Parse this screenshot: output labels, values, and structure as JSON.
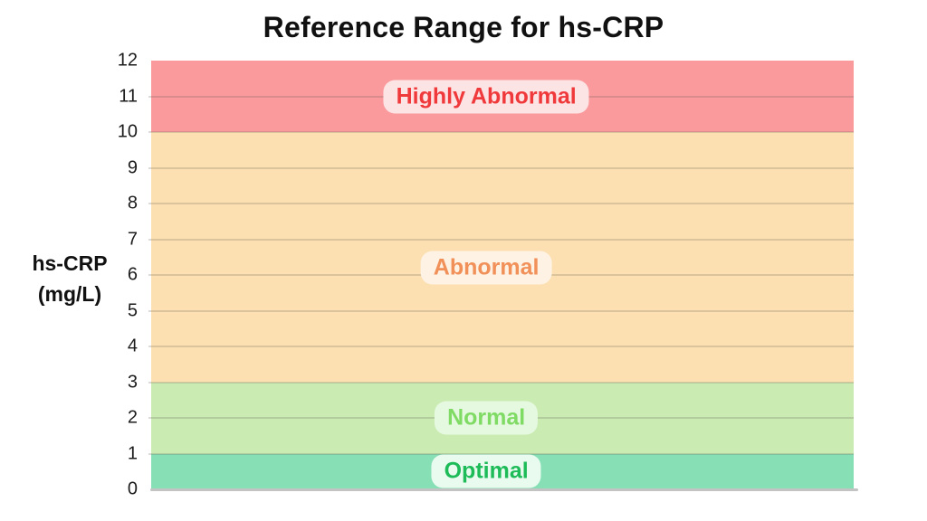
{
  "page": {
    "background": "#ffffff"
  },
  "chart_data": {
    "type": "area",
    "title": "Reference Range for hs-CRP",
    "ylabel": "hs-CRP (mg/L)",
    "ylabel_lines": [
      "hs-CRP",
      "(mg/L)"
    ],
    "xlabel": "",
    "ylim": [
      0,
      12
    ],
    "yticks": [
      12,
      11,
      10,
      9,
      8,
      7,
      6,
      5,
      4,
      3,
      2,
      1,
      0
    ],
    "grid": true,
    "legend": false,
    "axis_color": "#c3c3c3",
    "tick_color": "#1c1c1c",
    "title_color": "#111111",
    "bands": [
      {
        "label": "Highly Abnormal",
        "range": [
          10,
          12
        ],
        "label_y": 11.0,
        "band_color": "#fb9a9d",
        "label_color": "#f0393b",
        "label_bg": "#fce4e4"
      },
      {
        "label": "Abnormal",
        "range": [
          3,
          10
        ],
        "label_y": 6.2,
        "band_color": "#fde0b1",
        "label_color": "#f19058",
        "label_bg": "#fdf2e4"
      },
      {
        "label": "Normal",
        "range": [
          1,
          3
        ],
        "label_y": 2.0,
        "band_color": "#caecb2",
        "label_color": "#7fdb64",
        "label_bg": "#e5f8e0"
      },
      {
        "label": "Optimal",
        "range": [
          0,
          1
        ],
        "label_y": 0.5,
        "band_color": "#86dfb5",
        "label_color": "#1ebc59",
        "label_bg": "#e9faef"
      }
    ]
  }
}
